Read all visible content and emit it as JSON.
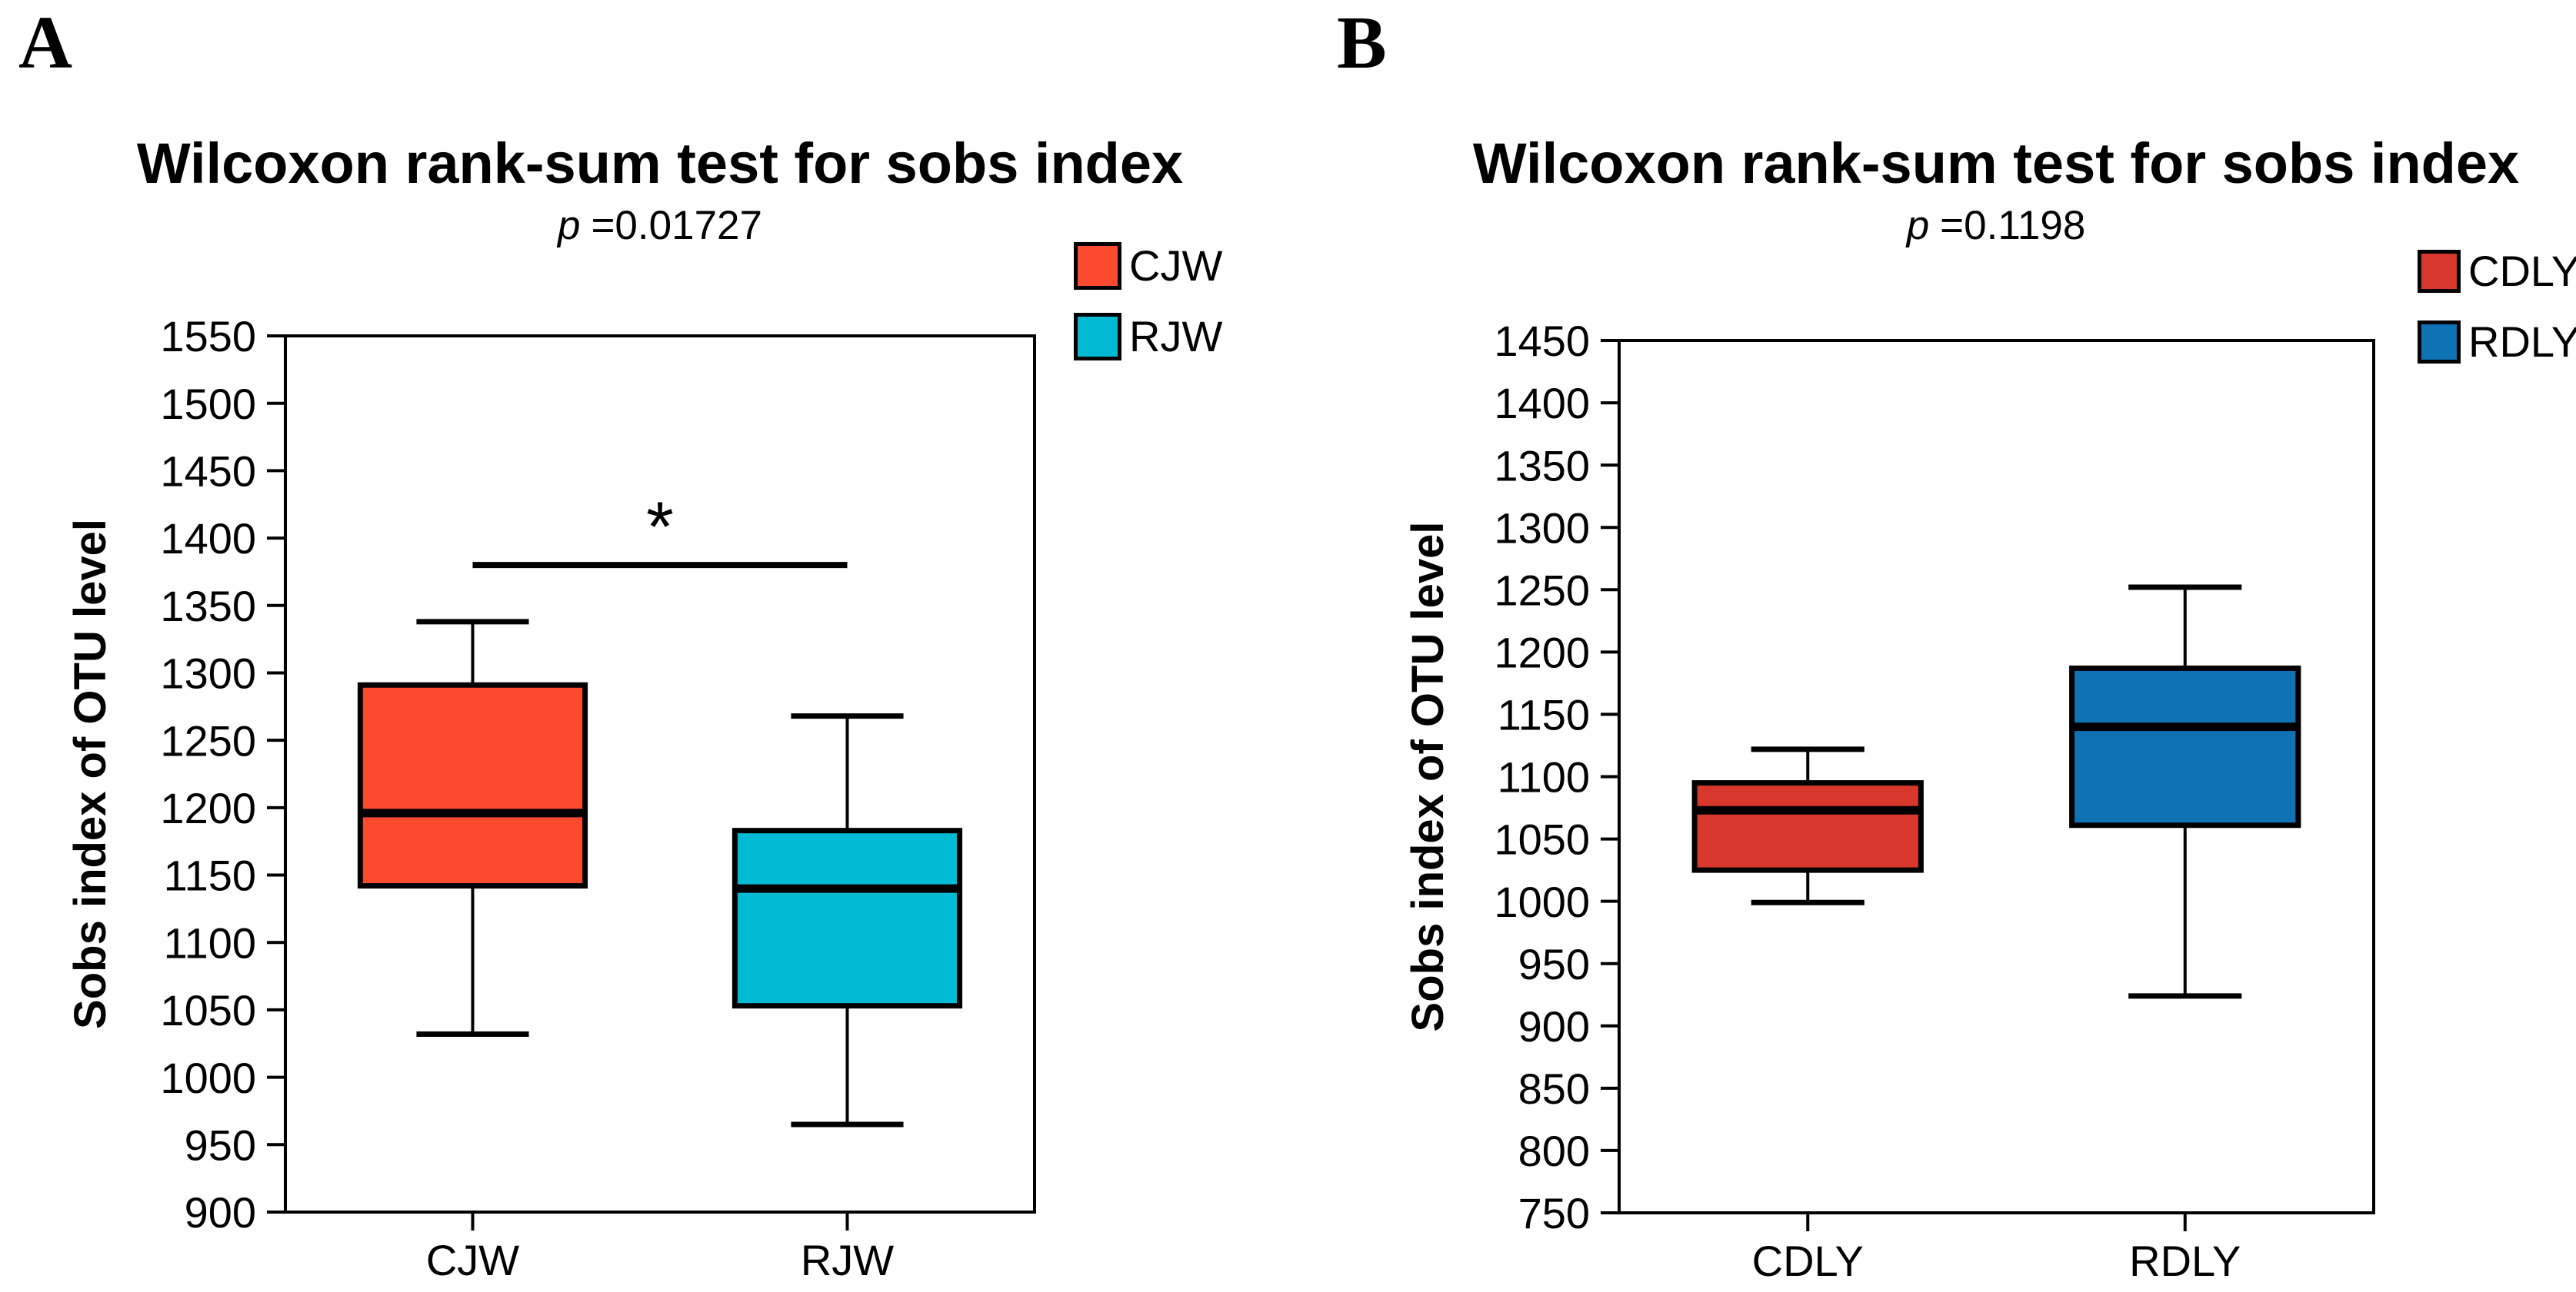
{
  "chart_data": [
    {
      "type": "box",
      "panel_label": "A",
      "title": "Wilcoxon rank-sum test for sobs index",
      "p_symbol": "p",
      "p_value_text": "=0.01727",
      "ylabel": "Sobs index of OTU level",
      "ylim": [
        900,
        1550
      ],
      "ytick_step": 50,
      "yticks": [
        900,
        950,
        1000,
        1050,
        1100,
        1150,
        1200,
        1250,
        1300,
        1350,
        1400,
        1450,
        1500,
        1550
      ],
      "categories": [
        "CJW",
        "RJW"
      ],
      "grid": false,
      "legend_position": "top-right",
      "legend": [
        {
          "label": "CJW",
          "color": "#FB4A2D"
        },
        {
          "label": "RJW",
          "color": "#00B9D3"
        }
      ],
      "series": [
        {
          "name": "CJW",
          "color": "#FB4A2D",
          "whisker_low": 1032,
          "q1": 1142,
          "median": 1196,
          "q3": 1291,
          "whisker_high": 1338
        },
        {
          "name": "RJW",
          "color": "#00B9D3",
          "whisker_low": 965,
          "q1": 1053,
          "median": 1140,
          "q3": 1183,
          "whisker_high": 1268
        }
      ],
      "significance": {
        "symbol": "*",
        "y": 1380,
        "from": "CJW",
        "to": "RJW"
      }
    },
    {
      "type": "box",
      "panel_label": "B",
      "title": "Wilcoxon rank-sum test for sobs index",
      "p_symbol": "p",
      "p_value_text": "=0.1198",
      "ylabel": "Sobs index of OTU level",
      "ylim": [
        750,
        1450
      ],
      "ytick_step": 50,
      "yticks": [
        750,
        800,
        850,
        900,
        950,
        1000,
        1050,
        1100,
        1150,
        1200,
        1250,
        1300,
        1350,
        1400,
        1450
      ],
      "categories": [
        "CDLY",
        "RDLY"
      ],
      "grid": false,
      "legend_position": "top-right",
      "legend": [
        {
          "label": "CDLY",
          "color": "#D8382B"
        },
        {
          "label": "RDLY",
          "color": "#0E72B5"
        }
      ],
      "series": [
        {
          "name": "CDLY",
          "color": "#D8382B",
          "whisker_low": 999,
          "q1": 1025,
          "median": 1073,
          "q3": 1095,
          "whisker_high": 1122
        },
        {
          "name": "RDLY",
          "color": "#0E72B5",
          "whisker_low": 924,
          "q1": 1061,
          "median": 1140,
          "q3": 1187,
          "whisker_high": 1252
        }
      ],
      "significance": null
    }
  ]
}
